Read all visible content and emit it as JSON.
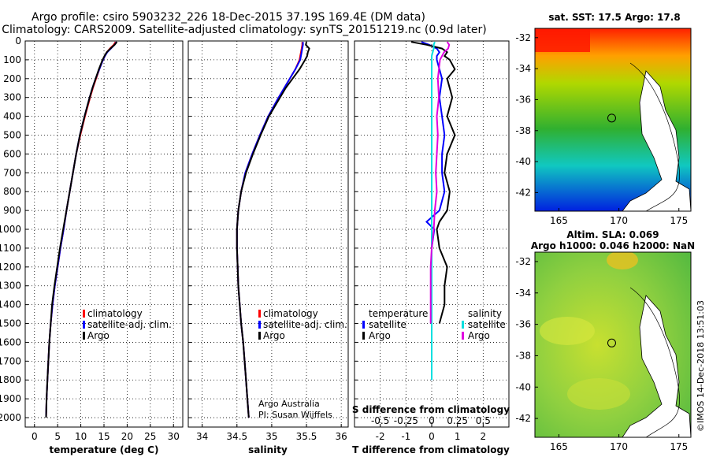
{
  "header": {
    "line1": "Argo profile: csiro 5903232_226 18-Dec-2015 37.19S 169.4E (DM data)",
    "line2": "Climatology: CARS2009. Satellite-adjusted climatology: synTS_20151219.nc (0.9d later)"
  },
  "depth_ticks": [
    "0",
    "100",
    "200",
    "300",
    "400",
    "500",
    "600",
    "700",
    "800",
    "900",
    "1000",
    "1100",
    "1200",
    "1300",
    "1400",
    "1500",
    "1600",
    "1700",
    "1800",
    "1900",
    "2000"
  ],
  "colors": {
    "climatology": "#ff0000",
    "satellite": "#0000ff",
    "argo": "#000000",
    "t_satellite": "#0000ff",
    "s_satellite": "#00e0e0",
    "s_argo": "#e000e0"
  },
  "chart_data": [
    {
      "type": "line",
      "xlabel": "temperature (deg C)",
      "xlim": [
        -2,
        32
      ],
      "ylim": [
        2050,
        0
      ],
      "xticks": [
        "0",
        "5",
        "10",
        "15",
        "20",
        "25",
        "30"
      ],
      "legend": [
        "climatology",
        "satellite-adj. clim.",
        "Argo"
      ],
      "series": [
        {
          "name": "climatology",
          "depth": [
            5,
            20,
            40,
            60,
            80,
            100,
            150,
            200,
            250,
            300,
            400,
            500,
            600,
            700,
            800,
            900,
            1000,
            1100,
            1200,
            1300,
            1400,
            1500,
            1600,
            1700,
            1800,
            1900,
            2000
          ],
          "values": [
            17.5,
            17.1,
            16.3,
            15.6,
            15.2,
            14.8,
            14.0,
            13.3,
            12.6,
            12.0,
            10.9,
            9.9,
            9.0,
            8.3,
            7.6,
            6.9,
            6.3,
            5.6,
            5.0,
            4.4,
            3.9,
            3.5,
            3.2,
            3.0,
            2.8,
            2.6,
            2.5
          ]
        },
        {
          "name": "satellite-adj. clim.",
          "depth": [
            5,
            20,
            40,
            60,
            80,
            100,
            150,
            200,
            250,
            300,
            400,
            500,
            600,
            700,
            800,
            900,
            1000,
            1100,
            1200,
            1300,
            1400,
            1500,
            1600,
            1700,
            1800,
            1900,
            2000
          ],
          "values": [
            17.7,
            17.3,
            16.5,
            15.7,
            15.2,
            14.8,
            14.0,
            13.2,
            12.5,
            11.9,
            10.8,
            9.8,
            9.0,
            8.3,
            7.6,
            6.9,
            6.3,
            5.6,
            5.0,
            4.4,
            3.9,
            3.5,
            3.2,
            3.0,
            2.8,
            2.6,
            2.5
          ]
        },
        {
          "name": "Argo",
          "depth": [
            5,
            20,
            40,
            60,
            80,
            100,
            150,
            200,
            250,
            300,
            400,
            500,
            600,
            700,
            800,
            900,
            1000,
            1100,
            1200,
            1300,
            1400,
            1500,
            1600,
            1700,
            1800,
            1900,
            2000
          ],
          "values": [
            17.8,
            17.3,
            16.4,
            15.6,
            15.1,
            14.7,
            13.9,
            13.2,
            12.5,
            11.9,
            10.8,
            9.8,
            9.0,
            8.3,
            7.6,
            6.9,
            6.2,
            5.5,
            4.9,
            4.3,
            3.8,
            3.5,
            3.2,
            3.0,
            2.8,
            2.6,
            2.5
          ]
        }
      ]
    },
    {
      "type": "line",
      "xlabel": "salinity",
      "xlim": [
        33.8,
        36.1
      ],
      "ylim": [
        2050,
        0
      ],
      "xticks": [
        "34",
        "34.5",
        "35",
        "35.5",
        "36"
      ],
      "legend": [
        "climatology",
        "satellite-adj. clim.",
        "Argo"
      ],
      "note": [
        "Argo Australia",
        "PI: Susan Wijffels"
      ],
      "series": [
        {
          "name": "climatology",
          "depth": [
            5,
            20,
            40,
            60,
            80,
            100,
            150,
            200,
            250,
            300,
            400,
            500,
            600,
            700,
            800,
            900,
            1000,
            1100,
            1200,
            1300,
            1400,
            1500,
            1600,
            1700,
            1800,
            1900,
            2000
          ],
          "values": [
            35.44,
            35.44,
            35.43,
            35.42,
            35.41,
            35.4,
            35.34,
            35.26,
            35.18,
            35.1,
            34.95,
            34.83,
            34.72,
            34.62,
            34.56,
            34.52,
            34.5,
            34.5,
            34.51,
            34.52,
            34.54,
            34.56,
            34.59,
            34.61,
            34.63,
            34.65,
            34.67
          ]
        },
        {
          "name": "satellite-adj. clim.",
          "depth": [
            5,
            20,
            40,
            60,
            80,
            100,
            150,
            200,
            250,
            300,
            400,
            500,
            600,
            700,
            800,
            900,
            1000,
            1100,
            1200,
            1300,
            1400,
            1500,
            1600,
            1700,
            1800,
            1900,
            2000
          ],
          "values": [
            35.45,
            35.45,
            35.44,
            35.43,
            35.42,
            35.41,
            35.34,
            35.26,
            35.18,
            35.1,
            34.95,
            34.83,
            34.72,
            34.62,
            34.56,
            34.52,
            34.5,
            34.5,
            34.51,
            34.52,
            34.54,
            34.56,
            34.59,
            34.61,
            34.63,
            34.65,
            34.67
          ]
        },
        {
          "name": "Argo",
          "depth": [
            5,
            20,
            40,
            60,
            80,
            100,
            150,
            200,
            250,
            300,
            400,
            500,
            600,
            700,
            800,
            900,
            1000,
            1100,
            1200,
            1300,
            1400,
            1500,
            1600,
            1700,
            1800,
            1900,
            2000
          ],
          "values": [
            35.5,
            35.49,
            35.54,
            35.52,
            35.51,
            35.48,
            35.4,
            35.3,
            35.2,
            35.12,
            34.96,
            34.84,
            34.73,
            34.63,
            34.56,
            34.52,
            34.5,
            34.5,
            34.51,
            34.52,
            34.54,
            34.56,
            34.59,
            34.61,
            34.63,
            34.65,
            34.67
          ]
        }
      ]
    },
    {
      "type": "line",
      "xlabel": "T difference from climatology",
      "top_label": "S difference from climatology",
      "xlim": [
        -3,
        3
      ],
      "ylim": [
        2050,
        0
      ],
      "xticks": [
        "-2",
        "-1",
        "0",
        "1",
        "2"
      ],
      "top_ticks": [
        "-0.5",
        "-0.25",
        "0",
        "0.25",
        "0.5"
      ],
      "legend_t": [
        "temperature",
        "satellite",
        "Argo"
      ],
      "legend_s": [
        "salinity",
        "satellite",
        "Argo"
      ],
      "series": [
        {
          "name": "satellite",
          "group": "temperature",
          "depth": [
            5,
            20,
            40,
            60,
            80,
            100,
            150,
            200,
            300,
            400,
            500,
            600,
            700,
            800,
            900,
            960,
            1000,
            1100,
            1200,
            1300,
            1400,
            1500,
            1600,
            1700,
            1800
          ],
          "values": [
            -0.4,
            -0.1,
            0.2,
            0.3,
            0.2,
            0.2,
            0.3,
            0.4,
            0.3,
            0.4,
            0.5,
            0.4,
            0.4,
            0.5,
            0.3,
            -0.2,
            0.1,
            0.0,
            0.0,
            0.0,
            0.0,
            0.0,
            0.0,
            0.0,
            0.0
          ]
        },
        {
          "name": "Argo",
          "group": "temperature",
          "depth": [
            5,
            20,
            40,
            60,
            80,
            100,
            150,
            200,
            300,
            400,
            500,
            600,
            700,
            800,
            900,
            960,
            1000,
            1100,
            1200,
            1300,
            1400,
            1500
          ],
          "values": [
            -0.8,
            -0.2,
            0.4,
            0.6,
            0.5,
            0.7,
            0.9,
            0.6,
            0.8,
            0.6,
            0.9,
            0.6,
            0.5,
            0.7,
            0.6,
            0.3,
            0.2,
            0.3,
            0.6,
            0.5,
            0.5,
            0.3
          ]
        },
        {
          "name": "satellite",
          "group": "salinity",
          "depth": [
            5,
            20,
            40,
            60,
            80,
            100,
            200,
            400,
            600,
            800,
            1000,
            1200,
            1400,
            1600,
            1800
          ],
          "values": [
            0.03,
            0.02,
            0.02,
            0.01,
            0.0,
            0.0,
            0.0,
            0.0,
            0.0,
            0.0,
            0.0,
            0.0,
            0.0,
            0.0,
            0.0
          ]
        },
        {
          "name": "Argo",
          "group": "salinity",
          "depth": [
            5,
            20,
            40,
            60,
            80,
            100,
            200,
            300,
            400,
            500,
            600,
            700,
            800,
            900,
            1000,
            1100,
            1200,
            1300,
            1400,
            1500
          ],
          "values": [
            0.15,
            0.17,
            0.16,
            0.12,
            0.1,
            0.08,
            0.06,
            0.07,
            0.05,
            0.06,
            0.05,
            0.04,
            0.05,
            0.03,
            0.02,
            0.0,
            -0.01,
            -0.01,
            -0.01,
            -0.01
          ]
        }
      ]
    }
  ],
  "maps": {
    "sst_title": "sat. SST: 17.5 Argo: 17.8",
    "sla_title_1": "Altim. SLA: 0.069",
    "sla_title_2": "Argo h1000: 0.046 h2000: NaN",
    "lat_ticks": [
      "-32",
      "-34",
      "-36",
      "-38",
      "-40",
      "-42"
    ],
    "lon_ticks": [
      "165",
      "170",
      "175"
    ],
    "argo_position": {
      "lon": 169.4,
      "lat": -37.19
    },
    "lon_range": [
      163,
      176
    ],
    "lat_range": [
      -43.2,
      -31.4
    ]
  },
  "credit": "©IMOS 14-Dec-2018 13:51:03"
}
